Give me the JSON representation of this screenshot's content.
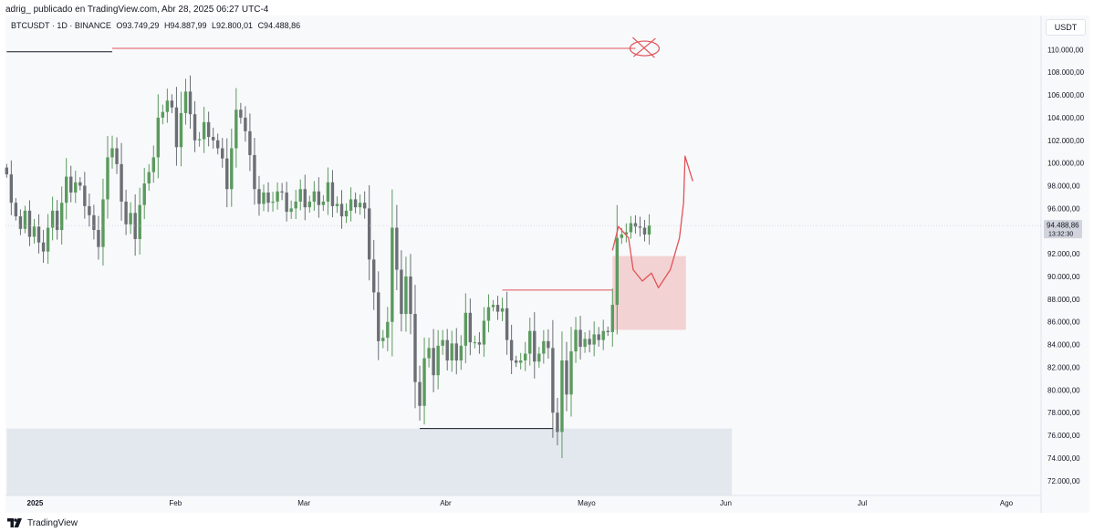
{
  "header": {
    "published_by": "adrig_ publicado en TradingView.com, Abr 28, 2025 06:27 UTC-4"
  },
  "symbol_bar": {
    "symbol": "BTCUSDT · 1D · BINANCE",
    "open": "O93.749,29",
    "high": "H94.887,99",
    "low": "L92.800,01",
    "close": "C94.488,86"
  },
  "currency": "USDT",
  "price_label": {
    "value": "94.488,86",
    "countdown": "13:32:30"
  },
  "footer": {
    "brand": "TradingView",
    "logo_icon": "tradingview-logo-icon"
  },
  "colors": {
    "up": "#5b9a5e",
    "down": "#6b6e74",
    "drawing": "#e05258",
    "zone": "#f2c4c6",
    "support_zone": "#dfe5ec"
  },
  "chart_data": {
    "type": "candlestick",
    "symbol": "BTCUSDT",
    "timeframe": "1D",
    "ylim": [
      70700,
      113000
    ],
    "y_ticks": [
      72000,
      74000,
      76000,
      78000,
      80000,
      82000,
      84000,
      86000,
      88000,
      90000,
      92000,
      94000,
      96000,
      98000,
      100000,
      102000,
      104000,
      106000,
      108000,
      110000
    ],
    "y_tick_labels": [
      "72.000,00",
      "74.000,00",
      "76.000,00",
      "78.000,00",
      "80.000,00",
      "82.000,00",
      "84.000,00",
      "86.000,00",
      "88.000,00",
      "90.000,00",
      "92.000,00",
      "94.000,00",
      "96.000,00",
      "98.000,00",
      "100.000,00",
      "102.000,00",
      "104.000,00",
      "106.000,00",
      "108.000,00",
      "110.000,00"
    ],
    "x_ticks": [
      {
        "label": "2025",
        "bar": 0
      },
      {
        "label": "Feb",
        "bar": 31
      },
      {
        "label": "Mar",
        "bar": 59
      },
      {
        "label": "Abr",
        "bar": 90
      },
      {
        "label": "Mayo",
        "bar": 120
      },
      {
        "label": "Jun",
        "bar": 151
      },
      {
        "label": "Jul",
        "bar": 181
      },
      {
        "label": "Ago",
        "bar": 212
      }
    ],
    "first_bar": -6,
    "last_bar": 211,
    "closes": [
      [
        -6,
        99000
      ],
      [
        -5,
        96500
      ],
      [
        -4,
        95300
      ],
      [
        -3,
        94200
      ],
      [
        -2,
        95800
      ],
      [
        -1,
        93500
      ],
      [
        0,
        94400
      ],
      [
        1,
        93000
      ],
      [
        2,
        92200
      ],
      [
        3,
        94300
      ],
      [
        4,
        95800
      ],
      [
        5,
        94100
      ],
      [
        6,
        96500
      ],
      [
        7,
        98800
      ],
      [
        8,
        97400
      ],
      [
        9,
        98300
      ],
      [
        10,
        98000
      ],
      [
        11,
        96200
      ],
      [
        12,
        95400
      ],
      [
        13,
        94100
      ],
      [
        14,
        92600
      ],
      [
        15,
        96800
      ],
      [
        16,
        100500
      ],
      [
        17,
        101300
      ],
      [
        18,
        99900
      ],
      [
        19,
        96600
      ],
      [
        20,
        94600
      ],
      [
        21,
        95600
      ],
      [
        22,
        93300
      ],
      [
        23,
        96300
      ],
      [
        24,
        98200
      ],
      [
        25,
        99200
      ],
      [
        26,
        100500
      ],
      [
        27,
        104000
      ],
      [
        28,
        104500
      ],
      [
        29,
        105500
      ],
      [
        30,
        104900
      ],
      [
        31,
        101400
      ],
      [
        32,
        104400
      ],
      [
        33,
        106300
      ],
      [
        34,
        104300
      ],
      [
        35,
        102000
      ],
      [
        36,
        102100
      ],
      [
        37,
        103600
      ],
      [
        38,
        102300
      ],
      [
        39,
        102000
      ],
      [
        40,
        101300
      ],
      [
        41,
        100400
      ],
      [
        42,
        97700
      ],
      [
        43,
        101300
      ],
      [
        44,
        104700
      ],
      [
        45,
        104000
      ],
      [
        46,
        102800
      ],
      [
        47,
        100700
      ],
      [
        48,
        97700
      ],
      [
        49,
        96400
      ],
      [
        50,
        97400
      ],
      [
        51,
        96500
      ],
      [
        52,
        96600
      ],
      [
        53,
        97500
      ],
      [
        54,
        97400
      ],
      [
        55,
        95700
      ],
      [
        56,
        96000
      ],
      [
        57,
        96600
      ],
      [
        58,
        97700
      ],
      [
        59,
        96100
      ],
      [
        60,
        96600
      ],
      [
        61,
        97500
      ],
      [
        62,
        96300
      ],
      [
        63,
        96600
      ],
      [
        64,
        98300
      ],
      [
        65,
        96200
      ],
      [
        66,
        96400
      ],
      [
        67,
        95300
      ],
      [
        68,
        95800
      ],
      [
        69,
        96800
      ],
      [
        70,
        96100
      ],
      [
        71,
        96500
      ],
      [
        72,
        96000
      ],
      [
        73,
        91500
      ],
      [
        74,
        88600
      ],
      [
        75,
        84300
      ],
      [
        76,
        84600
      ],
      [
        77,
        86000
      ],
      [
        78,
        94300
      ],
      [
        79,
        90600
      ],
      [
        80,
        86700
      ],
      [
        81,
        90000
      ],
      [
        82,
        86700
      ],
      [
        83,
        80700
      ],
      [
        84,
        78600
      ],
      [
        85,
        82800
      ],
      [
        86,
        83700
      ],
      [
        87,
        81300
      ],
      [
        88,
        83900
      ],
      [
        89,
        84400
      ],
      [
        90,
        82600
      ],
      [
        91,
        84100
      ],
      [
        92,
        82600
      ],
      [
        93,
        83900
      ],
      [
        94,
        86800
      ],
      [
        95,
        84200
      ],
      [
        96,
        84200
      ],
      [
        97,
        84000
      ],
      [
        98,
        86100
      ],
      [
        99,
        87300
      ],
      [
        100,
        87500
      ],
      [
        101,
        86900
      ],
      [
        102,
        87200
      ],
      [
        103,
        84400
      ],
      [
        104,
        82600
      ],
      [
        105,
        82400
      ],
      [
        106,
        82600
      ],
      [
        107,
        83200
      ],
      [
        108,
        85200
      ],
      [
        109,
        82500
      ],
      [
        110,
        83200
      ],
      [
        111,
        84300
      ],
      [
        112,
        83700
      ],
      [
        113,
        78000
      ],
      [
        114,
        76300
      ],
      [
        115,
        82600
      ],
      [
        116,
        79600
      ],
      [
        117,
        83400
      ],
      [
        118,
        85300
      ],
      [
        119,
        83800
      ],
      [
        120,
        84500
      ],
      [
        121,
        84000
      ],
      [
        122,
        84900
      ],
      [
        123,
        84400
      ],
      [
        124,
        85200
      ],
      [
        125,
        85100
      ],
      [
        126,
        87500
      ],
      [
        127,
        93400
      ],
      [
        128,
        93700
      ],
      [
        129,
        93900
      ],
      [
        130,
        94700
      ],
      [
        131,
        94400
      ],
      [
        132,
        94300
      ],
      [
        133,
        93700
      ],
      [
        134,
        94500
      ]
    ],
    "annotations": [
      {
        "name": "all-time-high-line",
        "type": "hline",
        "price": 109800,
        "from_bar": -6,
        "to_bar": 17,
        "color": "#131722"
      },
      {
        "name": "rejected-level",
        "type": "hline",
        "price": 110100,
        "from_bar": 17,
        "to_bar": 131,
        "color": "#e05258"
      },
      {
        "name": "local-high-line",
        "type": "hline",
        "price": 88800,
        "from_bar": 102,
        "to_bar": 126,
        "color": "#e05258"
      },
      {
        "name": "cycle-low-line",
        "type": "hline",
        "price": 76600,
        "from_bar": 84,
        "to_bar": 113,
        "color": "#131722"
      },
      {
        "name": "demand-zone",
        "type": "rect",
        "price_top": 91800,
        "price_bottom": 85300,
        "from_bar": 126,
        "to_bar": 142
      },
      {
        "name": "support-zone",
        "type": "rect",
        "price_top": 76600,
        "price_bottom": 70700,
        "from_bar": -6,
        "to_bar": 152
      }
    ],
    "last_price": 94488.86
  }
}
